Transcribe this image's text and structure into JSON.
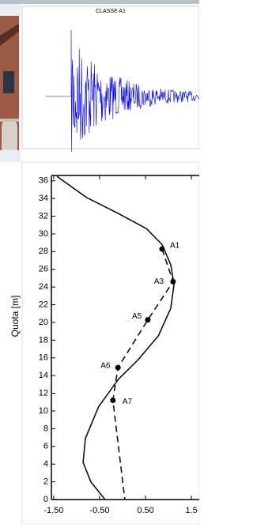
{
  "chart_data": [
    {
      "type": "waveform",
      "title": "CLASSE A1",
      "color": "#0000ff"
    },
    {
      "type": "line",
      "ylabel": "Quota [m]",
      "xlim": [
        -1.55,
        1.67
      ],
      "ylim": [
        0,
        36.6
      ],
      "xticks": [
        {
          "value": -1.5,
          "label": "-1.50"
        },
        {
          "value": -0.5,
          "label": "-0.50"
        },
        {
          "value": 0.5,
          "label": "0.50"
        },
        1.5
      ],
      "yticks": [
        0,
        2,
        4,
        6,
        8,
        10,
        12,
        14,
        16,
        18,
        20,
        22,
        24,
        26,
        28,
        30,
        32,
        34,
        36
      ],
      "series": [
        {
          "color": "#000000",
          "style": "solid",
          "x": [
            -1.43,
            -0.78,
            -0.09,
            0.52,
            0.86,
            1.05,
            1.12,
            1.05,
            0.78,
            0.34,
            -0.09,
            -0.52,
            -0.81,
            -0.86,
            -0.69,
            -0.38
          ],
          "values": [
            36.5,
            34.1,
            32.3,
            30.6,
            28.8,
            26.5,
            24.3,
            21.6,
            18.5,
            15.8,
            13.6,
            10.5,
            6.9,
            4.2,
            2.0,
            0
          ]
        },
        {
          "color": "#000000",
          "style": "dashed",
          "x": [
            0.86,
            1.1,
            0.55,
            -0.1,
            -0.21,
            0.05
          ],
          "values": [
            28.3,
            24.6,
            20.3,
            14.9,
            11.2,
            0
          ]
        }
      ],
      "points": {
        "color": "#000000",
        "labels": [
          "A1",
          "A3",
          "A5",
          "A6",
          "A7"
        ],
        "x": [
          0.86,
          1.1,
          0.55,
          -0.1,
          -0.21
        ],
        "y": [
          28.3,
          24.6,
          20.3,
          14.9,
          11.2
        ]
      }
    }
  ]
}
